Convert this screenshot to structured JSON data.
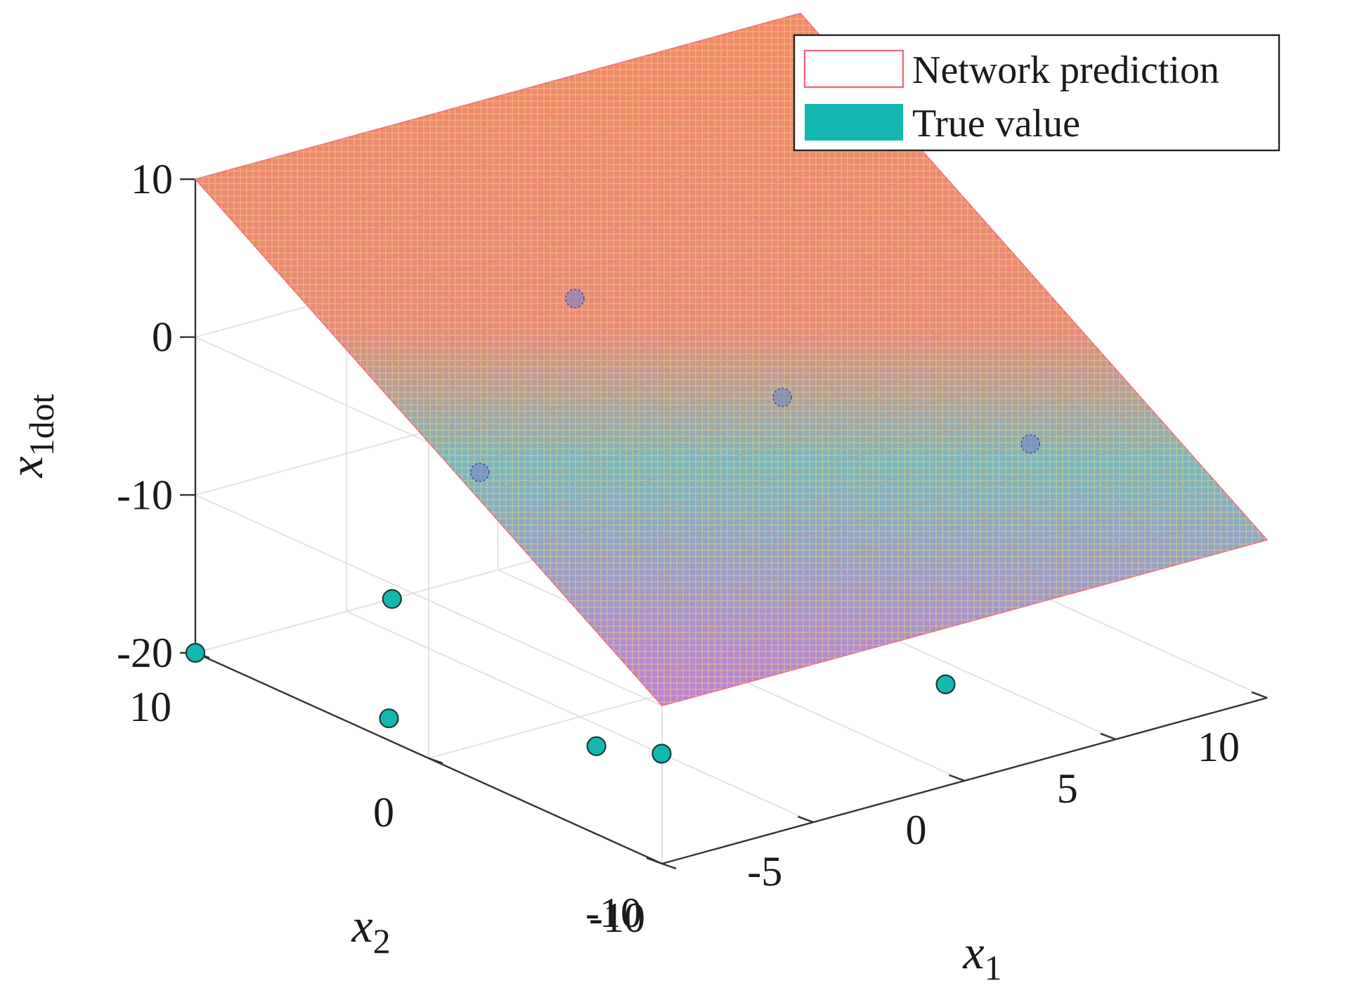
{
  "chart_data": {
    "type": "surface3d",
    "title": "",
    "axes": {
      "x": {
        "label": "x",
        "subscript": "1",
        "range": [
          -10,
          10
        ],
        "ticks": [
          "-10",
          "-5",
          "0",
          "5",
          "10"
        ]
      },
      "y": {
        "label": "x",
        "subscript": "2",
        "range": [
          -10,
          10
        ],
        "ticks": [
          "-10",
          "0",
          "10"
        ]
      },
      "z": {
        "label": "x",
        "subscript": "1dot",
        "range": [
          -20,
          10
        ],
        "ticks": [
          "10",
          "0",
          "-10",
          "-20"
        ]
      }
    },
    "grid": true,
    "legend": {
      "position": "top-right",
      "entries": [
        {
          "label": "Network prediction",
          "swatch": "outline",
          "color": "#f06a7a"
        },
        {
          "label": "True value",
          "swatch": "filled",
          "color": "#14b8b0"
        }
      ]
    },
    "surface": {
      "name": "Network prediction",
      "z_formula": "z = x2",
      "x_range": [
        -10,
        10
      ],
      "y_range": [
        -10,
        10
      ],
      "colormap": [
        "#f08a6a",
        "#e88a7a",
        "#7ab8c0",
        "#c080d0"
      ]
    },
    "points": {
      "name": "True value",
      "color": "#14b8b0",
      "values": [
        {
          "x1": -10,
          "x2": 10,
          "z": -20
        },
        {
          "x1": -3.5,
          "x2": 10,
          "z": -20
        },
        {
          "x1": -9,
          "x2": 3,
          "z": -20
        },
        {
          "x1": -6,
          "x2": -2,
          "z": -20
        },
        {
          "x1": -5,
          "x2": -3.5,
          "z": -20
        },
        {
          "x1": 4,
          "x2": -4,
          "z": -20
        },
        {
          "x1": -6,
          "x2": 3,
          "z": -6
        },
        {
          "x1": 1,
          "x2": 8,
          "z": -2
        },
        {
          "x1": 4,
          "x2": 3,
          "z": -6.5
        },
        {
          "x1": 9.5,
          "x2": -0.5,
          "z": -10
        }
      ]
    }
  }
}
